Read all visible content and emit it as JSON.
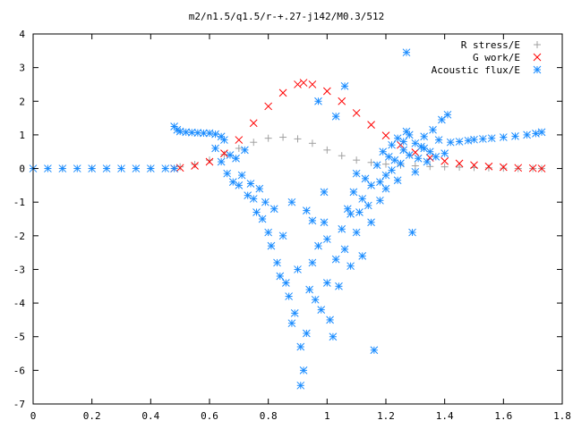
{
  "chart_data": {
    "type": "scatter",
    "title": "m2/n1.5/q1.5/r-+.27-j142/M0.3/512",
    "xlabel": "",
    "ylabel": "",
    "xlim": [
      0,
      1.8
    ],
    "ylim": [
      -7,
      4
    ],
    "x_ticks": [
      "0",
      "0.2",
      "0.4",
      "0.6",
      "0.8",
      "1",
      "1.2",
      "1.4",
      "1.6",
      "1.8"
    ],
    "y_ticks": [
      "4",
      "3",
      "2",
      "1",
      "0",
      "-1",
      "-2",
      "-3",
      "-4",
      "-5",
      "-6",
      "-7"
    ],
    "grid": false,
    "legend_position": "top-right",
    "series": [
      {
        "name": "R stress/E",
        "marker": "plus",
        "color": "#a0a0a0",
        "points": [
          [
            0.0,
            0
          ],
          [
            0.1,
            0
          ],
          [
            0.2,
            0
          ],
          [
            0.3,
            0
          ],
          [
            0.4,
            0
          ],
          [
            0.48,
            0
          ],
          [
            0.5,
            0.05
          ],
          [
            0.55,
            0.12
          ],
          [
            0.6,
            0.25
          ],
          [
            0.65,
            0.42
          ],
          [
            0.7,
            0.6
          ],
          [
            0.75,
            0.78
          ],
          [
            0.8,
            0.9
          ],
          [
            0.85,
            0.93
          ],
          [
            0.9,
            0.88
          ],
          [
            0.95,
            0.75
          ],
          [
            1.0,
            0.55
          ],
          [
            1.05,
            0.38
          ],
          [
            1.1,
            0.25
          ],
          [
            1.15,
            0.18
          ],
          [
            1.2,
            0.13
          ],
          [
            1.25,
            0.1
          ],
          [
            1.3,
            0.08
          ],
          [
            1.35,
            0.06
          ],
          [
            1.4,
            0.05
          ],
          [
            1.45,
            0.04
          ],
          [
            1.5,
            0.03
          ],
          [
            1.55,
            0.02
          ],
          [
            1.6,
            0.01
          ],
          [
            1.65,
            0.0
          ],
          [
            1.7,
            0.0
          ],
          [
            1.73,
            0.0
          ]
        ]
      },
      {
        "name": "G work/E",
        "marker": "cross",
        "color": "#ff0000",
        "points": [
          [
            0.48,
            0.0
          ],
          [
            0.5,
            0.02
          ],
          [
            0.55,
            0.08
          ],
          [
            0.6,
            0.2
          ],
          [
            0.65,
            0.45
          ],
          [
            0.7,
            0.85
          ],
          [
            0.75,
            1.35
          ],
          [
            0.8,
            1.85
          ],
          [
            0.85,
            2.25
          ],
          [
            0.9,
            2.5
          ],
          [
            0.92,
            2.55
          ],
          [
            0.95,
            2.5
          ],
          [
            1.0,
            2.3
          ],
          [
            1.05,
            2.0
          ],
          [
            1.1,
            1.65
          ],
          [
            1.15,
            1.3
          ],
          [
            1.2,
            0.98
          ],
          [
            1.25,
            0.7
          ],
          [
            1.3,
            0.48
          ],
          [
            1.35,
            0.32
          ],
          [
            1.4,
            0.22
          ],
          [
            1.45,
            0.15
          ],
          [
            1.5,
            0.1
          ],
          [
            1.55,
            0.06
          ],
          [
            1.6,
            0.04
          ],
          [
            1.65,
            0.02
          ],
          [
            1.7,
            0.01
          ],
          [
            1.73,
            0.0
          ]
        ]
      },
      {
        "name": "Acoustic flux/E",
        "marker": "star",
        "color": "#1a8cff",
        "points": [
          [
            0.0,
            0
          ],
          [
            0.05,
            0
          ],
          [
            0.1,
            0
          ],
          [
            0.15,
            0
          ],
          [
            0.2,
            0
          ],
          [
            0.25,
            0
          ],
          [
            0.3,
            0
          ],
          [
            0.35,
            0
          ],
          [
            0.4,
            0
          ],
          [
            0.45,
            0
          ],
          [
            0.48,
            0
          ],
          [
            0.48,
            1.25
          ],
          [
            0.49,
            1.15
          ],
          [
            0.5,
            1.1
          ],
          [
            0.52,
            1.08
          ],
          [
            0.54,
            1.07
          ],
          [
            0.56,
            1.06
          ],
          [
            0.58,
            1.05
          ],
          [
            0.6,
            1.05
          ],
          [
            0.62,
            1.02
          ],
          [
            0.64,
            0.95
          ],
          [
            1.42,
            0.78
          ],
          [
            1.45,
            0.8
          ],
          [
            1.48,
            0.83
          ],
          [
            1.5,
            0.86
          ],
          [
            1.53,
            0.88
          ],
          [
            1.56,
            0.9
          ],
          [
            1.6,
            0.93
          ],
          [
            1.64,
            0.96
          ],
          [
            1.68,
            1.0
          ],
          [
            1.71,
            1.04
          ],
          [
            1.73,
            1.08
          ],
          [
            0.62,
            0.6
          ],
          [
            0.64,
            0.2
          ],
          [
            0.65,
            0.85
          ],
          [
            0.66,
            -0.15
          ],
          [
            0.67,
            0.4
          ],
          [
            0.68,
            -0.4
          ],
          [
            0.69,
            0.3
          ],
          [
            0.7,
            -0.5
          ],
          [
            0.71,
            -0.2
          ],
          [
            0.72,
            0.55
          ],
          [
            0.73,
            -0.8
          ],
          [
            0.74,
            -0.45
          ],
          [
            0.75,
            -0.9
          ],
          [
            0.76,
            -1.3
          ],
          [
            0.77,
            -0.6
          ],
          [
            0.78,
            -1.5
          ],
          [
            0.79,
            -1.0
          ],
          [
            0.8,
            -1.9
          ],
          [
            0.81,
            -2.3
          ],
          [
            0.82,
            -1.2
          ],
          [
            0.83,
            -2.8
          ],
          [
            0.84,
            -3.2
          ],
          [
            0.85,
            -2.0
          ],
          [
            0.86,
            -3.4
          ],
          [
            0.87,
            -3.8
          ],
          [
            0.88,
            -4.6
          ],
          [
            0.89,
            -4.3
          ],
          [
            0.9,
            -3.0
          ],
          [
            0.91,
            -5.3
          ],
          [
            0.92,
            -6.0
          ],
          [
            0.93,
            -4.9
          ],
          [
            0.91,
            -6.45
          ],
          [
            0.94,
            -3.6
          ],
          [
            0.95,
            -2.8
          ],
          [
            0.96,
            -3.9
          ],
          [
            0.97,
            -2.3
          ],
          [
            0.98,
            -4.2
          ],
          [
            0.99,
            -1.6
          ],
          [
            1.0,
            -3.4
          ],
          [
            1.01,
            -4.5
          ],
          [
            1.02,
            -5.0
          ],
          [
            1.03,
            -2.7
          ],
          [
            1.04,
            -3.5
          ],
          [
            1.05,
            -1.8
          ],
          [
            1.06,
            -2.4
          ],
          [
            1.07,
            -1.2
          ],
          [
            1.08,
            -2.9
          ],
          [
            1.09,
            -0.7
          ],
          [
            1.1,
            -1.9
          ],
          [
            1.11,
            -1.3
          ],
          [
            1.12,
            -0.9
          ],
          [
            1.13,
            -0.3
          ],
          [
            1.14,
            -1.1
          ],
          [
            1.15,
            -0.5
          ],
          [
            1.16,
            -5.4
          ],
          [
            1.17,
            0.1
          ],
          [
            1.18,
            -0.4
          ],
          [
            1.19,
            0.5
          ],
          [
            1.2,
            -0.2
          ],
          [
            1.21,
            0.35
          ],
          [
            1.22,
            0.7
          ],
          [
            1.23,
            0.25
          ],
          [
            1.24,
            0.9
          ],
          [
            1.25,
            0.15
          ],
          [
            1.26,
            0.55
          ],
          [
            1.27,
            1.1
          ],
          [
            1.28,
            0.4
          ],
          [
            1.29,
            -1.9
          ],
          [
            1.3,
            0.75
          ],
          [
            1.31,
            0.3
          ],
          [
            1.32,
            0.65
          ],
          [
            1.33,
            0.95
          ],
          [
            1.34,
            0.2
          ],
          [
            1.35,
            0.5
          ],
          [
            1.36,
            1.15
          ],
          [
            1.37,
            0.35
          ],
          [
            1.38,
            0.85
          ],
          [
            1.39,
            1.45
          ],
          [
            1.4,
            0.45
          ],
          [
            1.41,
            1.6
          ],
          [
            1.27,
            3.45
          ],
          [
            1.06,
            2.45
          ],
          [
            1.03,
            1.55
          ],
          [
            0.97,
            2.0
          ],
          [
            0.88,
            -1.0
          ],
          [
            0.93,
            -1.25
          ],
          [
            0.95,
            -1.55
          ],
          [
            0.99,
            -0.7
          ],
          [
            1.0,
            -2.1
          ],
          [
            1.08,
            -1.35
          ],
          [
            1.12,
            -2.6
          ],
          [
            1.1,
            -0.15
          ],
          [
            1.15,
            -1.6
          ],
          [
            1.18,
            -0.95
          ],
          [
            1.2,
            -0.6
          ],
          [
            1.22,
            -0.05
          ],
          [
            1.24,
            -0.35
          ],
          [
            1.26,
            0.8
          ],
          [
            1.28,
            1.0
          ],
          [
            1.3,
            -0.1
          ],
          [
            1.33,
            0.6
          ]
        ]
      }
    ]
  }
}
